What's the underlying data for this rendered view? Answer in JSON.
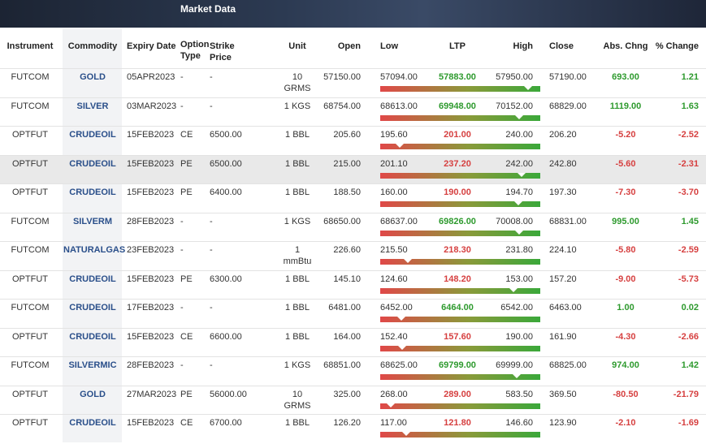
{
  "header": {
    "title": "Market Data"
  },
  "table": {
    "columns": [
      "Instrument",
      "Commodity",
      "Expiry Date",
      "Option Type",
      "Strike Price",
      "Unit",
      "Open",
      "Low",
      "LTP",
      "High",
      "Close",
      "Abs. Chng",
      "% Change"
    ],
    "rows": [
      [
        "FUTCOM",
        "GOLD",
        "05APR2023",
        "-",
        "-",
        "10 GRMS",
        "57150.00",
        "57094.00",
        "57883.00",
        "57950.00",
        "57190.00",
        "693.00",
        "1.21"
      ],
      [
        "FUTCOM",
        "SILVER",
        "03MAR2023",
        "-",
        "-",
        "1 KGS",
        "68754.00",
        "68613.00",
        "69948.00",
        "70152.00",
        "68829.00",
        "1119.00",
        "1.63"
      ],
      [
        "OPTFUT",
        "CRUDEOIL",
        "15FEB2023",
        "CE",
        "6500.00",
        "1 BBL",
        "205.60",
        "195.60",
        "201.00",
        "240.00",
        "206.20",
        "-5.20",
        "-2.52"
      ],
      [
        "OPTFUT",
        "CRUDEOIL",
        "15FEB2023",
        "PE",
        "6500.00",
        "1 BBL",
        "215.00",
        "201.10",
        "237.20",
        "242.00",
        "242.80",
        "-5.60",
        "-2.31"
      ],
      [
        "OPTFUT",
        "CRUDEOIL",
        "15FEB2023",
        "PE",
        "6400.00",
        "1 BBL",
        "188.50",
        "160.00",
        "190.00",
        "194.70",
        "197.30",
        "-7.30",
        "-3.70"
      ],
      [
        "FUTCOM",
        "SILVERM",
        "28FEB2023",
        "-",
        "-",
        "1 KGS",
        "68650.00",
        "68637.00",
        "69826.00",
        "70008.00",
        "68831.00",
        "995.00",
        "1.45"
      ],
      [
        "FUTCOM",
        "NATURALGAS",
        "23FEB2023",
        "-",
        "-",
        "1 mmBtu",
        "226.60",
        "215.50",
        "218.30",
        "231.80",
        "224.10",
        "-5.80",
        "-2.59"
      ],
      [
        "OPTFUT",
        "CRUDEOIL",
        "15FEB2023",
        "PE",
        "6300.00",
        "1 BBL",
        "145.10",
        "124.60",
        "148.20",
        "153.00",
        "157.20",
        "-9.00",
        "-5.73"
      ],
      [
        "FUTCOM",
        "CRUDEOIL",
        "17FEB2023",
        "-",
        "-",
        "1 BBL",
        "6481.00",
        "6452.00",
        "6464.00",
        "6542.00",
        "6463.00",
        "1.00",
        "0.02"
      ],
      [
        "OPTFUT",
        "CRUDEOIL",
        "15FEB2023",
        "CE",
        "6600.00",
        "1 BBL",
        "164.00",
        "152.40",
        "157.60",
        "190.00",
        "161.90",
        "-4.30",
        "-2.66"
      ],
      [
        "FUTCOM",
        "SILVERMIC",
        "28FEB2023",
        "-",
        "-",
        "1 KGS",
        "68851.00",
        "68625.00",
        "69799.00",
        "69999.00",
        "68825.00",
        "974.00",
        "1.42"
      ],
      [
        "OPTFUT",
        "GOLD",
        "27MAR2023",
        "PE",
        "56000.00",
        "10 GRMS",
        "325.00",
        "268.00",
        "289.00",
        "583.50",
        "369.50",
        "-80.50",
        "-21.79"
      ],
      [
        "OPTFUT",
        "CRUDEOIL",
        "15FEB2023",
        "CE",
        "6700.00",
        "1 BBL",
        "126.20",
        "117.00",
        "121.80",
        "146.60",
        "123.90",
        "-2.10",
        "-1.69"
      ]
    ]
  }
}
